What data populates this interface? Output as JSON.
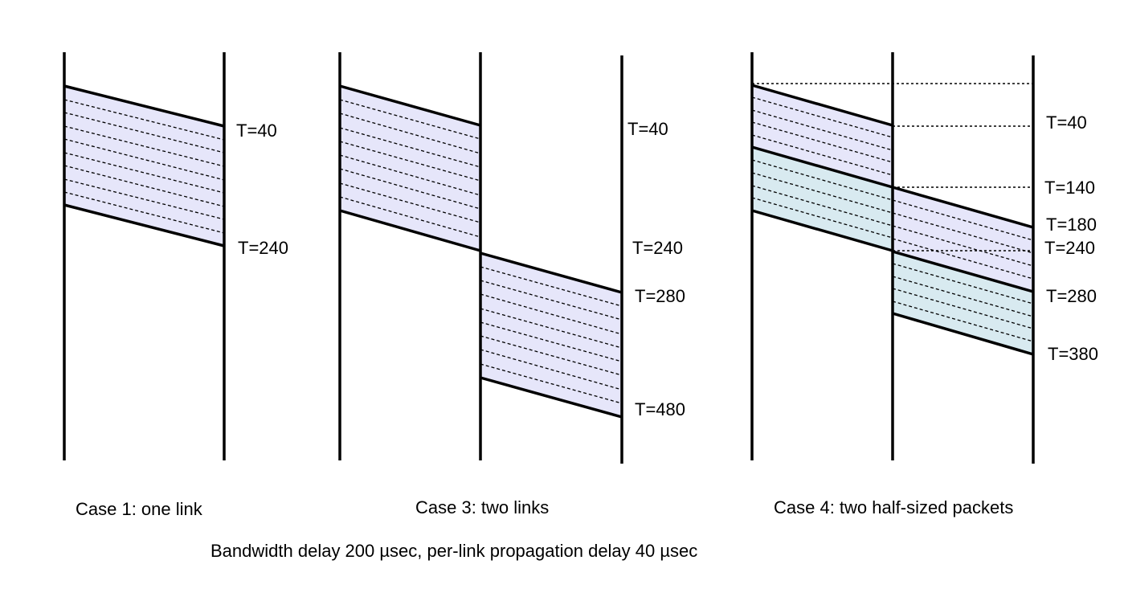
{
  "cases": [
    {
      "caption": "Case 1: one link",
      "time_labels": [
        "T=40",
        "T=240"
      ]
    },
    {
      "caption": "Case 3: two links",
      "time_labels": [
        "T=40",
        "T=240",
        "T=280",
        "T=480"
      ]
    },
    {
      "caption": "Case 4: two half-sized packets",
      "time_labels": [
        "T=40",
        "T=140",
        "T=180",
        "T=240",
        "T=280",
        "T=380"
      ]
    }
  ],
  "footer": "Bandwidth delay 200 µsec, per-link propagation delay 40 µsec",
  "colors": {
    "packet_fill": "#e6e6fa",
    "second_packet_fill": "#d8eaf0",
    "line": "#000000"
  }
}
